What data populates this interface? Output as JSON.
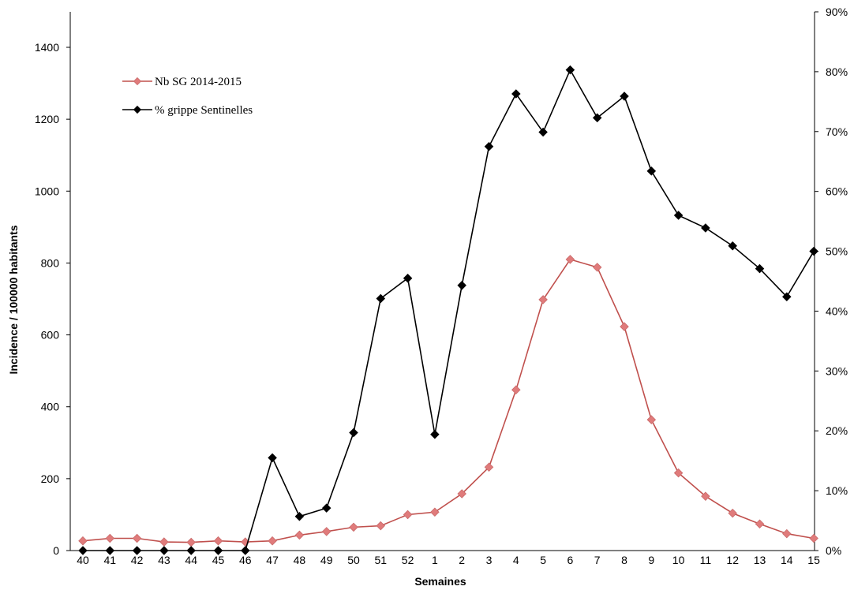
{
  "chart_data": {
    "type": "line",
    "xlabel": "Semaines",
    "ylabel": "Incidence / 100000 habitants",
    "categories": [
      "40",
      "41",
      "42",
      "43",
      "44",
      "45",
      "46",
      "47",
      "48",
      "49",
      "50",
      "51",
      "52",
      "1",
      "2",
      "3",
      "4",
      "5",
      "6",
      "7",
      "8",
      "9",
      "10",
      "11",
      "12",
      "13",
      "14",
      "15"
    ],
    "ylim": [
      0,
      1400
    ],
    "y_ticks": [
      "0",
      "200",
      "400",
      "600",
      "800",
      "1000",
      "1200",
      "1400"
    ],
    "y2lim": [
      0,
      90
    ],
    "y2_ticks": [
      "0%",
      "10%",
      "20%",
      "30%",
      "40%",
      "50%",
      "60%",
      "70%",
      "80%",
      "90%"
    ],
    "grid": false,
    "legend_position": "top-left",
    "series": [
      {
        "name": "Nb SG 2014-2015",
        "axis": "left",
        "color": "#c0504d",
        "marker_color": "#e07b7b",
        "values": [
          27,
          34,
          34,
          24,
          23,
          27,
          24,
          27,
          43,
          53,
          65,
          69,
          100,
          107,
          158,
          232,
          447,
          698,
          810,
          788,
          623,
          364,
          216,
          151,
          104,
          74,
          47,
          34
        ]
      },
      {
        "name": "% grippe Sentinelles",
        "axis": "right",
        "color": "#000000",
        "marker_color": "#000000",
        "values": [
          0,
          0,
          0,
          0,
          0,
          0,
          0,
          15.5,
          5.7,
          7.1,
          19.7,
          42.1,
          45.5,
          19.4,
          44.3,
          67.5,
          76.3,
          69.9,
          80.3,
          72.3,
          75.9,
          63.4,
          56.0,
          53.9,
          50.9,
          47.1,
          42.4,
          50.0
        ]
      }
    ]
  }
}
